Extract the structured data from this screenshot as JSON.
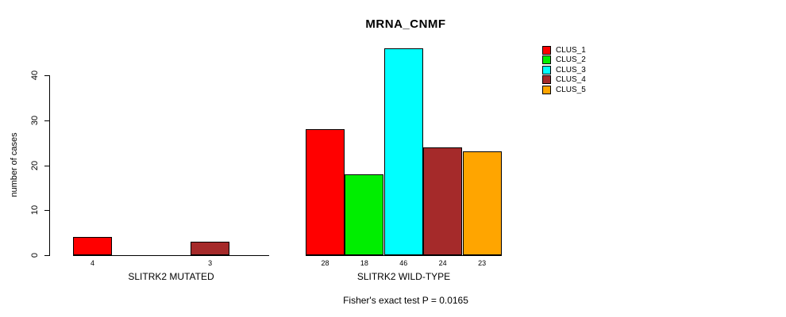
{
  "title": "MRNA_CNMF",
  "subtitle": "Fisher's exact test P = 0.0165",
  "ylabel": "number of cases",
  "chart_data": {
    "type": "bar",
    "title": "MRNA_CNMF",
    "xlabel": "",
    "ylabel": "number of cases",
    "ylim": [
      0,
      46
    ],
    "yticks": [
      0,
      10,
      20,
      30,
      40
    ],
    "grid": false,
    "legend_position": "top-right-inside",
    "annotation": "Fisher's exact test P = 0.0165",
    "series_labels": [
      "CLUS_1",
      "CLUS_2",
      "CLUS_3",
      "CLUS_4",
      "CLUS_5"
    ],
    "series_colors": [
      "#FF0000",
      "#00EE00",
      "#00FFFF",
      "#A52A2A",
      "#FFA500"
    ],
    "groups": [
      {
        "label": "SLITRK2 MUTATED",
        "values": [
          4,
          0,
          0,
          3,
          0
        ]
      },
      {
        "label": "SLITRK2 WILD-TYPE",
        "values": [
          28,
          18,
          46,
          24,
          23
        ]
      }
    ],
    "bar_value_labels": [
      [
        "4",
        "",
        "",
        "3",
        ""
      ],
      [
        "28",
        "18",
        "46",
        "24",
        "23"
      ]
    ]
  },
  "legend": {
    "items": [
      {
        "label": "CLUS_1",
        "color": "#FF0000"
      },
      {
        "label": "CLUS_2",
        "color": "#00EE00"
      },
      {
        "label": "CLUS_3",
        "color": "#00FFFF"
      },
      {
        "label": "CLUS_4",
        "color": "#A52A2A"
      },
      {
        "label": "CLUS_5",
        "color": "#FFA500"
      }
    ]
  }
}
